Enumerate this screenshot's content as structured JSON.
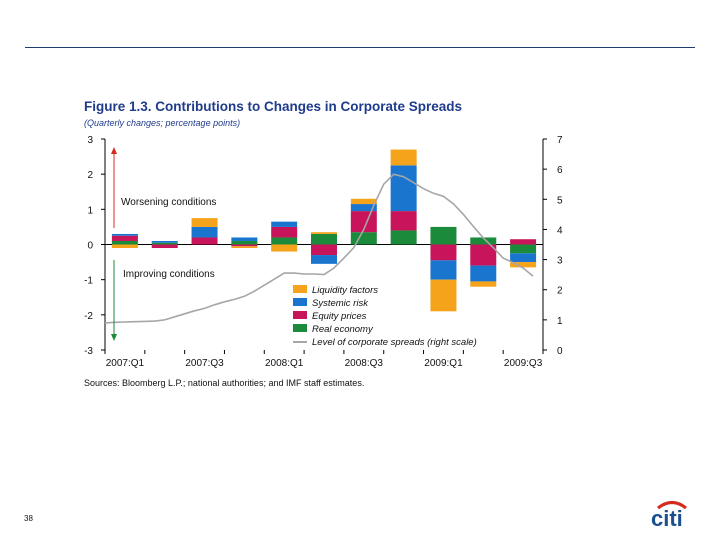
{
  "figure": {
    "title": "Figure 1.3. Contributions to Changes in Corporate Spreads",
    "subtitle": "(Quarterly changes; percentage points)",
    "sources": "Sources: Bloomberg L.P.; national authorities; and IMF staff estimates."
  },
  "page_number": "38",
  "logo_text": "citi",
  "colors": {
    "liquidity": "#f5a31a",
    "systemic": "#1a75cf",
    "equity": "#c8145a",
    "real_economy": "#1b8a3a",
    "spread_line": "#a6a6a6",
    "title": "#1f3b8c",
    "logo_arc": "#d52b1e",
    "logo_text": "#1b4f8e"
  },
  "chart_data": {
    "type": "bar",
    "stacked": true,
    "categories": [
      "2007:Q1",
      "2007:Q2",
      "2007:Q3",
      "2007:Q4",
      "2008:Q1",
      "2008:Q2",
      "2008:Q3",
      "2008:Q4",
      "2009:Q1",
      "2009:Q2",
      "2009:Q3"
    ],
    "tick_labels": [
      "2007:Q1",
      "2007:Q3",
      "2008:Q1",
      "2008:Q3",
      "2009:Q1",
      "2009:Q3"
    ],
    "ylim": [
      -3,
      3
    ],
    "yticks": [
      3,
      2,
      1,
      0,
      -1,
      -2,
      -3
    ],
    "y2lim": [
      0,
      7
    ],
    "y2ticks": [
      7,
      6,
      5,
      4,
      3,
      2,
      1,
      0
    ],
    "series": [
      {
        "name": "Real economy",
        "key": "real_economy",
        "values": [
          0.1,
          0.05,
          0.0,
          0.1,
          0.2,
          0.3,
          0.35,
          0.4,
          0.5,
          0.2,
          -0.25
        ]
      },
      {
        "name": "Equity prices",
        "key": "equity",
        "values": [
          0.15,
          -0.1,
          0.2,
          -0.05,
          0.3,
          -0.3,
          0.6,
          0.55,
          -0.45,
          -0.6,
          0.15
        ]
      },
      {
        "name": "Systemic risk",
        "key": "systemic",
        "values": [
          0.05,
          0.05,
          0.3,
          0.1,
          0.15,
          -0.25,
          0.2,
          1.3,
          -0.55,
          -0.45,
          -0.25
        ]
      },
      {
        "name": "Liquidity factors",
        "key": "liquidity",
        "values": [
          -0.1,
          0.0,
          0.25,
          -0.05,
          -0.2,
          0.05,
          0.15,
          0.45,
          -0.9,
          -0.15,
          -0.15
        ]
      }
    ],
    "legend_order": [
      "liquidity",
      "systemic",
      "equity",
      "real_economy"
    ],
    "line": {
      "name": "Level of corporate spreads (right scale)",
      "x": [
        -0.5,
        -0.25,
        0,
        0.25,
        0.5,
        0.75,
        1,
        1.25,
        1.5,
        1.75,
        2,
        2.25,
        2.5,
        2.75,
        3,
        3.25,
        3.5,
        3.75,
        4,
        4.25,
        4.5,
        4.75,
        5,
        5.25,
        5.5,
        5.75,
        6,
        6.25,
        6.5,
        6.75,
        7,
        7.25,
        7.5,
        7.75,
        8,
        8.25,
        8.5,
        8.75,
        9,
        9.25,
        9.5,
        9.75,
        10,
        10.25
      ],
      "values": [
        0.9,
        0.92,
        0.93,
        0.94,
        0.95,
        0.96,
        1.0,
        1.1,
        1.2,
        1.3,
        1.38,
        1.5,
        1.6,
        1.68,
        1.78,
        1.95,
        2.15,
        2.35,
        2.55,
        2.55,
        2.52,
        2.52,
        2.5,
        2.72,
        3.05,
        3.4,
        4.0,
        4.8,
        5.5,
        5.83,
        5.75,
        5.55,
        5.35,
        5.2,
        5.1,
        4.85,
        4.5,
        4.1,
        3.72,
        3.4,
        3.05,
        2.9,
        2.72,
        2.45
      ]
    },
    "annotations": {
      "worsening": "Worsening conditions",
      "improving": "Improving conditions"
    },
    "legend_placement": "lower-center"
  }
}
